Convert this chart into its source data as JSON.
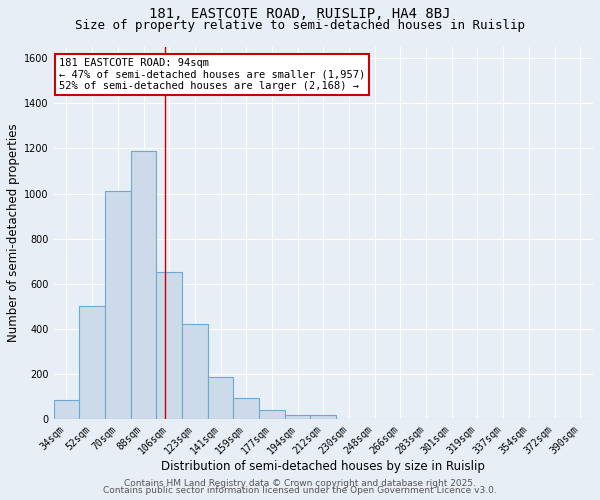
{
  "title": "181, EASTCOTE ROAD, RUISLIP, HA4 8BJ",
  "subtitle": "Size of property relative to semi-detached houses in Ruislip",
  "xlabel": "Distribution of semi-detached houses by size in Ruislip",
  "ylabel": "Number of semi-detached properties",
  "categories": [
    "34sqm",
    "52sqm",
    "70sqm",
    "88sqm",
    "106sqm",
    "123sqm",
    "141sqm",
    "159sqm",
    "177sqm",
    "194sqm",
    "212sqm",
    "230sqm",
    "248sqm",
    "266sqm",
    "283sqm",
    "301sqm",
    "319sqm",
    "337sqm",
    "354sqm",
    "372sqm",
    "390sqm"
  ],
  "values": [
    85,
    500,
    1010,
    1190,
    650,
    420,
    185,
    95,
    40,
    20,
    20,
    0,
    0,
    0,
    0,
    0,
    0,
    0,
    0,
    0,
    0
  ],
  "bar_color": "#ccdaea",
  "bar_edge_color": "#6aaad4",
  "red_line_x": 3.83,
  "annotation_title": "181 EASTCOTE ROAD: 94sqm",
  "annotation_line1": "← 47% of semi-detached houses are smaller (1,957)",
  "annotation_line2": "52% of semi-detached houses are larger (2,168) →",
  "annotation_box_color": "#ffffff",
  "annotation_box_edge": "#cc0000",
  "red_line_color": "#cc0000",
  "ylim": [
    0,
    1650
  ],
  "footer1": "Contains HM Land Registry data © Crown copyright and database right 2025.",
  "footer2": "Contains public sector information licensed under the Open Government Licence v3.0.",
  "bg_color": "#e8eef5",
  "plot_bg_color": "#e8eef5",
  "grid_color": "#ffffff",
  "title_fontsize": 10,
  "subtitle_fontsize": 9,
  "axis_label_fontsize": 8.5,
  "tick_fontsize": 7,
  "annotation_fontsize": 7.5,
  "footer_fontsize": 6.5
}
